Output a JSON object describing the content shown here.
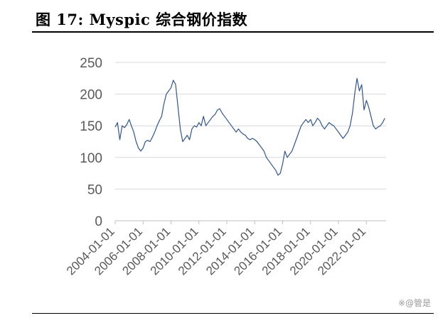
{
  "figure": {
    "title": "图 17:  Myspic 综合钢价指数"
  },
  "watermark": "※@管是",
  "chart_data": {
    "type": "line",
    "title": "",
    "xlabel": "",
    "ylabel": "",
    "ylim": [
      0,
      250
    ],
    "yticks": [
      0,
      50,
      100,
      150,
      200,
      250
    ],
    "xlim": [
      "2004-01-01",
      "2023-06-01"
    ],
    "xticks": [
      "2004-01-01",
      "2006-01-01",
      "2008-01-01",
      "2010-01-01",
      "2012-01-01",
      "2014-01-01",
      "2016-01-01",
      "2018-01-01",
      "2020-01-01",
      "2022-01-01"
    ],
    "grid": "horizontal",
    "line_color": "#2f5597",
    "series": [
      {
        "x": [
          "2004-01-01",
          "2004-03-01",
          "2004-05-01",
          "2004-07-01",
          "2004-09-01",
          "2004-11-01",
          "2005-01-01",
          "2005-03-01",
          "2005-05-01",
          "2005-07-01",
          "2005-09-01",
          "2005-11-01",
          "2006-01-01",
          "2006-03-01",
          "2006-05-01",
          "2006-07-01",
          "2006-09-01",
          "2006-11-01",
          "2007-01-01",
          "2007-03-01",
          "2007-05-01",
          "2007-07-01",
          "2007-09-01",
          "2007-11-01",
          "2008-01-01",
          "2008-03-01",
          "2008-05-01",
          "2008-07-01",
          "2008-09-01",
          "2008-11-01",
          "2009-01-01",
          "2009-03-01",
          "2009-05-01",
          "2009-07-01",
          "2009-09-01",
          "2009-11-01",
          "2010-01-01",
          "2010-03-01",
          "2010-05-01",
          "2010-07-01",
          "2010-09-01",
          "2010-11-01",
          "2011-01-01",
          "2011-03-01",
          "2011-05-01",
          "2011-07-01",
          "2011-09-01",
          "2011-11-01",
          "2012-01-01",
          "2012-03-01",
          "2012-05-01",
          "2012-07-01",
          "2012-09-01",
          "2012-11-01",
          "2013-01-01",
          "2013-03-01",
          "2013-05-01",
          "2013-07-01",
          "2013-09-01",
          "2013-11-01",
          "2014-01-01",
          "2014-03-01",
          "2014-05-01",
          "2014-07-01",
          "2014-09-01",
          "2014-11-01",
          "2015-01-01",
          "2015-03-01",
          "2015-05-01",
          "2015-07-01",
          "2015-09-01",
          "2015-11-01",
          "2016-01-01",
          "2016-03-01",
          "2016-05-01",
          "2016-07-01",
          "2016-09-01",
          "2016-11-01",
          "2017-01-01",
          "2017-03-01",
          "2017-05-01",
          "2017-07-01",
          "2017-09-01",
          "2017-11-01",
          "2018-01-01",
          "2018-03-01",
          "2018-05-01",
          "2018-07-01",
          "2018-09-01",
          "2018-11-01",
          "2019-01-01",
          "2019-03-01",
          "2019-05-01",
          "2019-07-01",
          "2019-09-01",
          "2019-11-01",
          "2020-01-01",
          "2020-03-01",
          "2020-05-01",
          "2020-07-01",
          "2020-09-01",
          "2020-11-01",
          "2021-01-01",
          "2021-03-01",
          "2021-05-01",
          "2021-07-01",
          "2021-09-01",
          "2021-11-01",
          "2022-01-01",
          "2022-03-01",
          "2022-05-01",
          "2022-07-01",
          "2022-09-01",
          "2022-11-01",
          "2023-01-01",
          "2023-03-01",
          "2023-05-01"
        ],
        "values": [
          148,
          155,
          128,
          150,
          147,
          152,
          160,
          150,
          140,
          125,
          115,
          110,
          115,
          125,
          127,
          125,
          132,
          140,
          150,
          158,
          165,
          185,
          200,
          205,
          210,
          222,
          215,
          180,
          145,
          125,
          130,
          135,
          128,
          145,
          150,
          148,
          155,
          150,
          165,
          150,
          155,
          160,
          165,
          168,
          175,
          177,
          170,
          165,
          160,
          155,
          150,
          145,
          140,
          145,
          140,
          137,
          135,
          130,
          128,
          130,
          128,
          125,
          120,
          115,
          110,
          100,
          95,
          90,
          85,
          80,
          72,
          75,
          90,
          110,
          100,
          105,
          110,
          120,
          130,
          140,
          150,
          155,
          160,
          155,
          160,
          150,
          155,
          162,
          158,
          150,
          145,
          150,
          155,
          152,
          150,
          145,
          140,
          135,
          130,
          135,
          140,
          150,
          170,
          200,
          225,
          205,
          215,
          175,
          190,
          180,
          165,
          150,
          145,
          148,
          150,
          155,
          162
        ]
      }
    ]
  }
}
